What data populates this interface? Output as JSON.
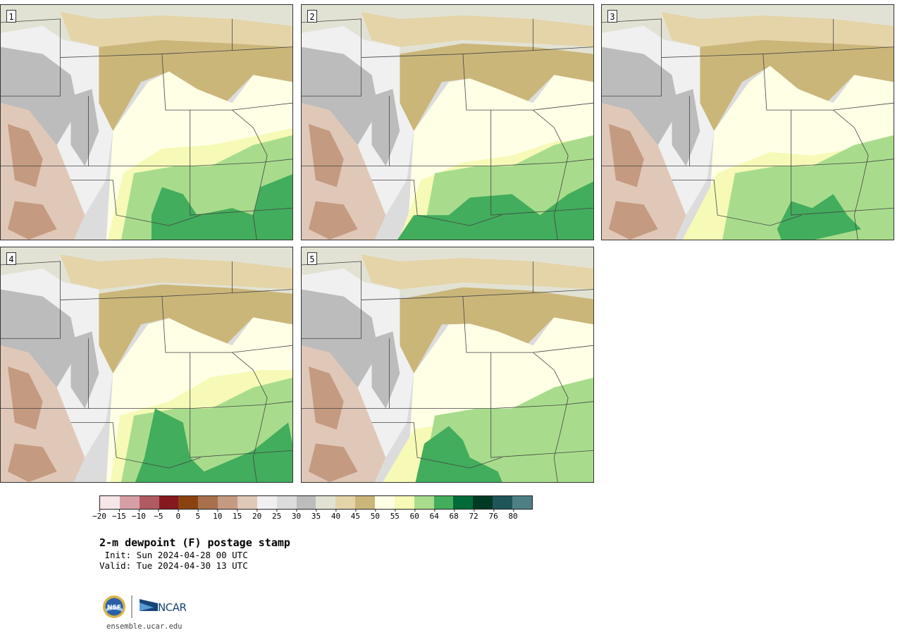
{
  "panels": [
    {
      "label": "1",
      "region": "central-us",
      "field": "2m-dewpoint"
    },
    {
      "label": "2",
      "region": "central-us",
      "field": "2m-dewpoint"
    },
    {
      "label": "3",
      "region": "central-us",
      "field": "2m-dewpoint"
    },
    {
      "label": "4",
      "region": "central-us",
      "field": "2m-dewpoint"
    },
    {
      "label": "5",
      "region": "central-us",
      "field": "2m-dewpoint"
    }
  ],
  "colorbar": {
    "ticks": [
      "−20",
      "−15",
      "−10",
      "−5",
      "0",
      "5",
      "10",
      "15",
      "20",
      "25",
      "30",
      "35",
      "40",
      "45",
      "50",
      "55",
      "60",
      "64",
      "68",
      "72",
      "76",
      "80"
    ],
    "colors": [
      "#f5e6e8",
      "#d59fa5",
      "#b05a62",
      "#861820",
      "#8a4310",
      "#a8704c",
      "#c49a80",
      "#e0c8b8",
      "#f0f0f0",
      "#dcdcdc",
      "#bcbcbc",
      "#e2e2d4",
      "#e4d4a8",
      "#cbb67a",
      "#ffffe6",
      "#f6fab6",
      "#a8dc8c",
      "#42ad5c",
      "#006a38",
      "#003a25",
      "#1f5458",
      "#4e7f86"
    ]
  },
  "title": "2-m dewpoint (F) postage stamp",
  "init_line": " Init: Sun 2024-04-28 00 UTC",
  "valid_line": "Valid: Tue 2024-04-30 13 UTC",
  "logos": {
    "nsf_text": "NSF",
    "ncar_text": "NCAR",
    "nsf_color": "#2a5fa8",
    "ncar_color": "#17457a"
  },
  "site": "ensemble.ucar.edu"
}
